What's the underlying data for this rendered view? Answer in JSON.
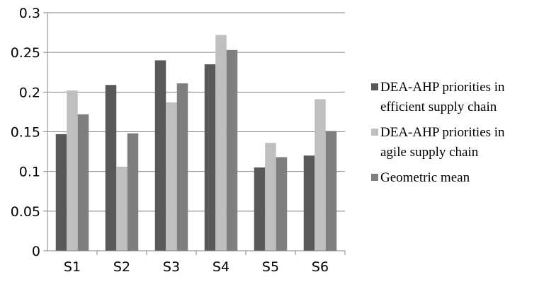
{
  "chart_data": {
    "type": "bar",
    "categories": [
      "S1",
      "S2",
      "S3",
      "S4",
      "S5",
      "S6"
    ],
    "series": [
      {
        "name": "DEA-AHP priorities in efficient supply chain",
        "name_lines": [
          "DEA-AHP priorities in",
          "efficient supply chain"
        ],
        "color": "#595959",
        "values": [
          0.147,
          0.209,
          0.24,
          0.235,
          0.105,
          0.12
        ]
      },
      {
        "name": "DEA-AHP priorities in agile supply chain",
        "name_lines": [
          "DEA-AHP priorities in",
          "agile supply chain"
        ],
        "color": "#bfbfbf",
        "values": [
          0.202,
          0.106,
          0.187,
          0.272,
          0.136,
          0.191
        ]
      },
      {
        "name": "Geometric mean",
        "name_lines": [
          "Geometric mean"
        ],
        "color": "#7f7f7f",
        "values": [
          0.172,
          0.148,
          0.211,
          0.253,
          0.118,
          0.151
        ]
      }
    ],
    "ylim": [
      0,
      0.3
    ],
    "yticks": [
      "0",
      "0.05",
      "0.1",
      "0.15",
      "0.2",
      "0.25",
      "0.3"
    ],
    "grid": true,
    "legend": "right",
    "title": "",
    "xlabel": "",
    "ylabel": ""
  }
}
